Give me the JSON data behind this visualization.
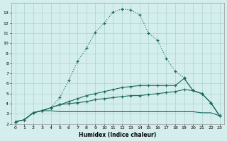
{
  "xlabel": "Humidex (Indice chaleur)",
  "bg_color": "#d4eeed",
  "grid_color": "#a0cccc",
  "line_color": "#1a6b5a",
  "xlim": [
    -0.5,
    23.5
  ],
  "ylim": [
    2.0,
    14.0
  ],
  "xticks": [
    0,
    1,
    2,
    3,
    4,
    5,
    6,
    7,
    8,
    9,
    10,
    11,
    12,
    13,
    14,
    15,
    16,
    17,
    18,
    19,
    20,
    21,
    22,
    23
  ],
  "yticks": [
    2,
    3,
    4,
    5,
    6,
    7,
    8,
    9,
    10,
    11,
    12,
    13
  ],
  "line1_x": [
    0,
    1,
    2,
    3,
    4,
    5,
    6,
    7,
    8,
    9,
    10,
    11,
    12,
    13,
    14,
    15,
    16,
    17,
    18,
    19,
    20,
    21,
    22,
    23
  ],
  "line1_y": [
    2.2,
    2.4,
    3.1,
    3.3,
    3.6,
    4.6,
    6.3,
    8.2,
    9.5,
    11.1,
    12.0,
    13.1,
    13.4,
    13.3,
    12.8,
    11.0,
    10.3,
    8.5,
    7.2,
    6.6,
    5.3,
    5.0,
    4.1,
    2.8
  ],
  "line2_x": [
    0,
    1,
    2,
    3,
    4,
    5,
    6,
    7,
    8,
    9,
    10,
    11,
    12,
    13,
    14,
    15,
    16,
    17,
    18,
    19,
    20,
    21,
    22,
    23
  ],
  "line2_y": [
    2.2,
    2.4,
    3.1,
    3.3,
    3.3,
    3.2,
    3.2,
    3.2,
    3.2,
    3.2,
    3.2,
    3.2,
    3.2,
    3.2,
    3.2,
    3.2,
    3.2,
    3.2,
    3.2,
    3.2,
    3.2,
    3.1,
    3.1,
    2.8
  ],
  "line3_x": [
    0,
    1,
    2,
    3,
    4,
    5,
    6,
    7,
    8,
    9,
    10,
    11,
    12,
    13,
    14,
    15,
    16,
    17,
    18,
    19,
    20,
    21,
    22,
    23
  ],
  "line3_y": [
    2.2,
    2.4,
    3.1,
    3.3,
    3.6,
    3.9,
    4.2,
    4.5,
    4.8,
    5.0,
    5.2,
    5.4,
    5.6,
    5.7,
    5.8,
    5.8,
    5.8,
    5.8,
    5.8,
    6.5,
    5.3,
    5.0,
    4.1,
    2.8
  ],
  "line4_x": [
    0,
    1,
    2,
    3,
    4,
    5,
    6,
    7,
    8,
    9,
    10,
    11,
    12,
    13,
    14,
    15,
    16,
    17,
    18,
    19,
    20,
    21,
    22,
    23
  ],
  "line4_y": [
    2.2,
    2.4,
    3.1,
    3.3,
    3.6,
    3.9,
    4.0,
    4.1,
    4.2,
    4.4,
    4.5,
    4.6,
    4.7,
    4.8,
    4.8,
    4.9,
    5.0,
    5.1,
    5.2,
    5.4,
    5.3,
    5.0,
    4.1,
    2.8
  ]
}
